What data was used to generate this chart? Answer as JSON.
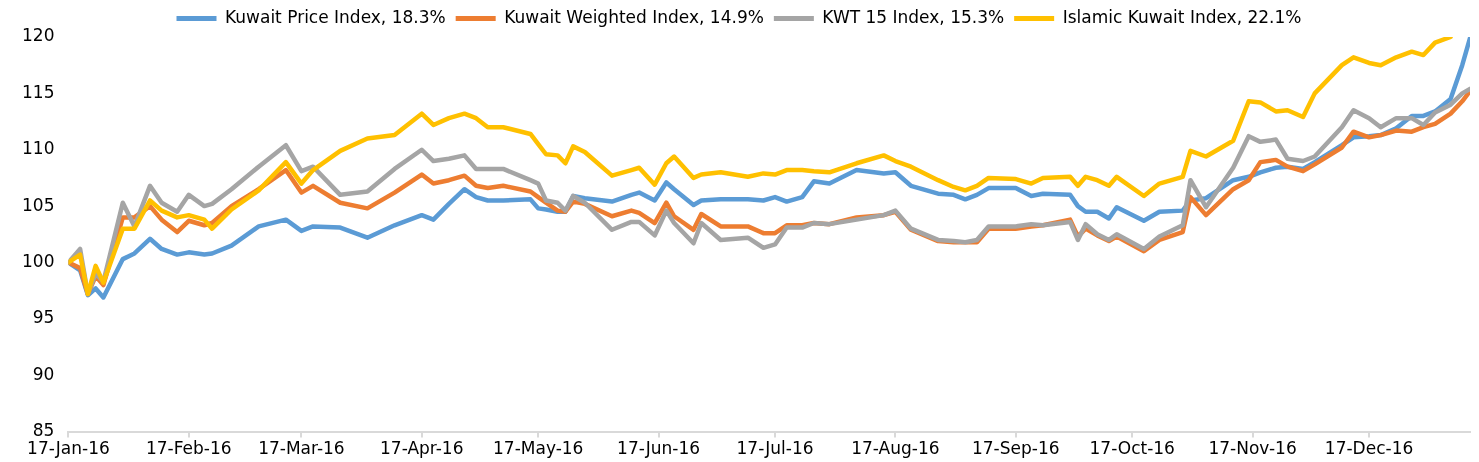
{
  "chart_data": {
    "type": "line",
    "legend": "top",
    "marker": "none",
    "line_style": "solid",
    "x": [
      "2016-01-17",
      "2016-01-20",
      "2016-01-22",
      "2016-01-24",
      "2016-01-26",
      "2016-01-31",
      "2016-02-03",
      "2016-02-07",
      "2016-02-10",
      "2016-02-14",
      "2016-02-17",
      "2016-02-21",
      "2016-02-23",
      "2016-02-28",
      "2016-03-06",
      "2016-03-13",
      "2016-03-17",
      "2016-03-20",
      "2016-03-27",
      "2016-04-03",
      "2016-04-10",
      "2016-04-17",
      "2016-04-20",
      "2016-04-24",
      "2016-04-28",
      "2016-05-01",
      "2016-05-04",
      "2016-05-08",
      "2016-05-15",
      "2016-05-17",
      "2016-05-19",
      "2016-05-22",
      "2016-05-24",
      "2016-05-26",
      "2016-05-29",
      "2016-06-05",
      "2016-06-10",
      "2016-06-12",
      "2016-06-16",
      "2016-06-19",
      "2016-06-21",
      "2016-06-26",
      "2016-06-28",
      "2016-07-03",
      "2016-07-10",
      "2016-07-14",
      "2016-07-17",
      "2016-07-20",
      "2016-07-24",
      "2016-07-27",
      "2016-07-31",
      "2016-08-07",
      "2016-08-14",
      "2016-08-17",
      "2016-08-21",
      "2016-08-28",
      "2016-09-01",
      "2016-09-04",
      "2016-09-07",
      "2016-09-10",
      "2016-09-17",
      "2016-09-21",
      "2016-09-24",
      "2016-10-01",
      "2016-10-03",
      "2016-10-05",
      "2016-10-08",
      "2016-10-11",
      "2016-10-13",
      "2016-10-20",
      "2016-10-24",
      "2016-10-30",
      "2016-11-01",
      "2016-11-05",
      "2016-11-12",
      "2016-11-16",
      "2016-11-19",
      "2016-11-23",
      "2016-11-26",
      "2016-11-30",
      "2016-12-03",
      "2016-12-10",
      "2016-12-13",
      "2016-12-17",
      "2016-12-20",
      "2016-12-24",
      "2016-12-28",
      "2016-12-31",
      "2017-01-03",
      "2017-01-07",
      "2017-01-10",
      "2017-01-12"
    ],
    "series": [
      {
        "name": "Kuwait Price Index, 18.3%",
        "color": "#5b9bd5",
        "values": [
          100,
          99.3,
          97.1,
          97.7,
          96.9,
          100.3,
          100.8,
          102.1,
          101.2,
          100.7,
          100.9,
          100.7,
          100.8,
          101.5,
          103.2,
          103.8,
          102.8,
          103.2,
          103.1,
          102.2,
          103.3,
          104.2,
          103.8,
          105.2,
          106.5,
          105.8,
          105.5,
          105.5,
          105.6,
          104.8,
          104.7,
          104.5,
          104.5,
          105.9,
          105.7,
          105.4,
          106,
          106.2,
          105.5,
          107.1,
          106.5,
          105.1,
          105.5,
          105.6,
          105.6,
          105.5,
          105.8,
          105.4,
          105.8,
          107.2,
          107,
          108.2,
          107.9,
          108,
          106.8,
          106.1,
          106,
          105.6,
          106,
          106.6,
          106.6,
          105.9,
          106.1,
          106,
          105,
          104.5,
          104.5,
          103.9,
          104.9,
          103.7,
          104.5,
          104.6,
          105.5,
          105.7,
          107.3,
          107.6,
          108,
          108.4,
          108.5,
          108.3,
          108.9,
          110.4,
          111.1,
          111.2,
          111.3,
          111.9,
          113,
          113,
          113.4,
          114.5,
          117.5,
          119.9
        ]
      },
      {
        "name": "Kuwait Weighted Index, 14.9%",
        "color": "#ed7d31",
        "values": [
          100,
          99.5,
          97.2,
          98.8,
          98,
          104,
          104,
          105,
          103.8,
          102.7,
          103.7,
          103.3,
          103.5,
          105,
          106.5,
          108.2,
          106.2,
          106.8,
          105.3,
          104.8,
          106.2,
          107.8,
          107,
          107.3,
          107.7,
          106.8,
          106.6,
          106.8,
          106.3,
          105.8,
          105.3,
          104.6,
          104.5,
          105.4,
          105.2,
          104.1,
          104.6,
          104.4,
          103.5,
          105.3,
          104.1,
          102.9,
          104.3,
          103.2,
          103.2,
          102.6,
          102.6,
          103.3,
          103.3,
          103.5,
          103.4,
          104,
          104.2,
          104.5,
          102.9,
          101.9,
          101.8,
          101.8,
          101.8,
          103,
          103,
          103.2,
          103.3,
          103.8,
          102.3,
          103,
          102.4,
          101.9,
          102.3,
          101,
          102,
          102.7,
          105.8,
          104.2,
          106.5,
          107.3,
          108.9,
          109.1,
          108.5,
          108.1,
          108.7,
          110.2,
          111.6,
          111.1,
          111.3,
          111.7,
          111.6,
          112,
          112.3,
          113.2,
          114.3,
          115.2
        ]
      },
      {
        "name": "KWT 15 Index, 15.3%",
        "color": "#a5a5a5",
        "values": [
          100,
          101.2,
          97.2,
          99,
          98.3,
          105.3,
          103.2,
          106.8,
          105.3,
          104.5,
          106,
          105,
          105.2,
          106.5,
          108.5,
          110.4,
          108.1,
          108.5,
          106,
          106.3,
          108.3,
          110,
          109,
          109.2,
          109.5,
          108.3,
          108.3,
          108.3,
          107.3,
          107,
          105.5,
          105.3,
          104.6,
          105.9,
          105.3,
          102.9,
          103.6,
          103.6,
          102.4,
          104.6,
          103.5,
          101.7,
          103.5,
          102,
          102.2,
          101.3,
          101.6,
          103.1,
          103.1,
          103.5,
          103.4,
          103.8,
          104.2,
          104.6,
          103,
          102,
          101.9,
          101.8,
          102,
          103.2,
          103.2,
          103.4,
          103.3,
          103.6,
          102,
          103.4,
          102.5,
          102,
          102.5,
          101.2,
          102.3,
          103.3,
          107.3,
          104.9,
          108.4,
          111.2,
          110.7,
          110.9,
          109.2,
          109,
          109.4,
          112,
          113.5,
          112.8,
          112,
          112.8,
          112.8,
          112.2,
          113.3,
          114,
          115,
          115.4
        ]
      },
      {
        "name": "Islamic Kuwait Index, 22.1%",
        "color": "#ffc000",
        "values": [
          100,
          100.7,
          97.2,
          99.7,
          98.2,
          103,
          103,
          105.5,
          104.6,
          104,
          104.2,
          103.8,
          103,
          104.7,
          106.4,
          108.9,
          107,
          108.2,
          109.9,
          111,
          111.3,
          113.2,
          112.2,
          112.8,
          113.2,
          112.8,
          112,
          112,
          111.4,
          110.5,
          109.6,
          109.5,
          108.8,
          110.3,
          109.8,
          107.7,
          108.2,
          108.4,
          106.9,
          108.8,
          109.4,
          107.5,
          107.8,
          108,
          107.6,
          107.9,
          107.8,
          108.2,
          108.2,
          108.1,
          108,
          108.8,
          109.5,
          109,
          108.5,
          107.3,
          106.7,
          106.4,
          106.8,
          107.5,
          107.4,
          107,
          107.5,
          107.6,
          106.8,
          107.6,
          107.3,
          106.8,
          107.6,
          105.9,
          107,
          107.6,
          109.9,
          109.4,
          110.8,
          114.3,
          114.2,
          113.4,
          113.5,
          112.9,
          115,
          117.5,
          118.2,
          117.7,
          117.5,
          118.2,
          118.7,
          118.4,
          119.5,
          120,
          null,
          null
        ]
      }
    ],
    "xlim": [
      "2016-01-17",
      "2017-01-12"
    ],
    "xticks": [
      {
        "value": "2016-01-17",
        "label": "17-Jan-16"
      },
      {
        "value": "2016-02-17",
        "label": "17-Feb-16"
      },
      {
        "value": "2016-03-17",
        "label": "17-Mar-16"
      },
      {
        "value": "2016-04-17",
        "label": "17-Apr-16"
      },
      {
        "value": "2016-05-17",
        "label": "17-May-16"
      },
      {
        "value": "2016-06-17",
        "label": "17-Jun-16"
      },
      {
        "value": "2016-07-17",
        "label": "17-Jul-16"
      },
      {
        "value": "2016-08-17",
        "label": "17-Aug-16"
      },
      {
        "value": "2016-09-17",
        "label": "17-Sep-16"
      },
      {
        "value": "2016-10-17",
        "label": "17-Oct-16"
      },
      {
        "value": "2016-11-17",
        "label": "17-Nov-16"
      },
      {
        "value": "2016-12-17",
        "label": "17-Dec-16"
      }
    ],
    "ylim": [
      85,
      120
    ],
    "yticks": [
      85,
      90,
      95,
      100,
      105,
      110,
      115,
      120
    ]
  }
}
